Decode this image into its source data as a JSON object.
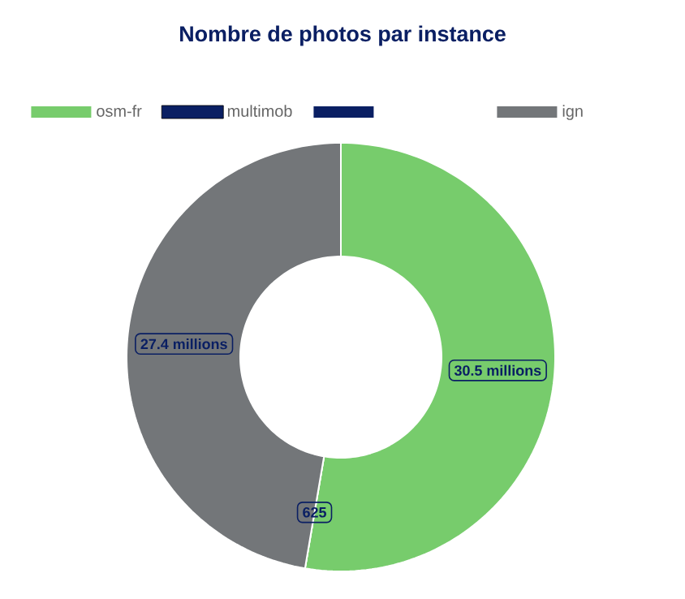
{
  "chart_data": {
    "type": "donut",
    "title": "Nombre de photos par instance",
    "categories": [
      "osm-fr",
      "multimob",
      null,
      "ign"
    ],
    "values": [
      30500000,
      null,
      625,
      27400000
    ],
    "colors": [
      "#77cc6c",
      "#0a1f63",
      "#0a1f63",
      "#737679"
    ],
    "value_labels": [
      "30.5 millions",
      null,
      "625",
      "27.4 millions"
    ],
    "legend": "top"
  }
}
